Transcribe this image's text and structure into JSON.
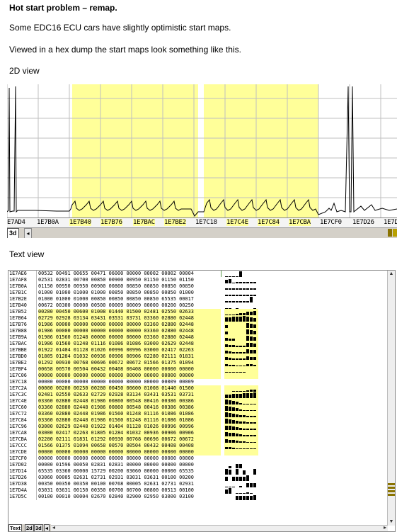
{
  "title": "Hot start problem – remap.",
  "paragraph1": "Some EDC16 ECU cars have slightly optimistic start maps.",
  "paragraph2": "Viewed in a hex dump the start maps look something like this.",
  "label_2d": "2D view",
  "label_text": "Text view",
  "colors": {
    "highlight": "#ffff99",
    "grid": "#bfbfbf",
    "trace": "#000000",
    "scroll_marker": "#b8a000"
  },
  "graph": {
    "addresses": [
      "E7AD4",
      "1E7B0A",
      "1E7B40",
      "1E7B76",
      "1E7BAC",
      "1E7BE2",
      "1E7C18",
      "1E7C4E",
      "1E7C84",
      "1E7CBA",
      "1E7CF0",
      "1E7D26",
      "1E7D"
    ],
    "highlighted_range_labels": [
      "1E7B40",
      "1E7B76",
      "1E7BAC",
      "1E7BE2",
      "1E7C4E",
      "1E7C84",
      "1E7CBA"
    ],
    "tabs": [
      "3d",
      "◂"
    ]
  },
  "text_view": {
    "rows": [
      {
        "addr": "1E7AE6",
        "vals": "00532 00491 00655 00471 06000 00000 00002 00002 00004",
        "hl": false
      },
      {
        "addr": "1E7AF8",
        "vals": "02531 02831 00700 00850 00900 00950 01150 01150 01150",
        "hl": false
      },
      {
        "addr": "1E7B0A",
        "vals": "01150 00950 00950 00900 00860 00850 00850 00850 00850",
        "hl": false
      },
      {
        "addr": "1E7B1C",
        "vals": "01000 01000 01000 01000 00850 00850 00850 00850 01000",
        "hl": false
      },
      {
        "addr": "1E7B2E",
        "vals": "01000 01000 01000 00850 00850 00850 00850 65535 00017",
        "hl": false
      },
      {
        "addr": "1E7B40",
        "vals": "00672 00300 00000 00500 00009 00009 00000 00200 00250",
        "hl": false
      },
      {
        "addr": "1E7B52",
        "vals": "00280 00450 00600 01008 01440 01500 02481 02550 02633",
        "hl": true
      },
      {
        "addr": "1E7B64",
        "vals": "02729 02928 03134 03431 03531 03731 03360 02880 02448",
        "hl": true
      },
      {
        "addr": "1E7B76",
        "vals": "01986 00000 00000 00000 00000 00000 03360 02880 02448",
        "hl": true
      },
      {
        "addr": "1E7B88",
        "vals": "01986 00000 00000 00000 00000 00000 03360 02880 02448",
        "hl": true
      },
      {
        "addr": "1E7B9A",
        "vals": "01986 01560 01248 00000 00000 00000 03360 02880 02448",
        "hl": true
      },
      {
        "addr": "1E7BAC",
        "vals": "01986 01560 01248 01116 01086 01086 03000 02629 02448",
        "hl": true
      },
      {
        "addr": "1E7BBE",
        "vals": "01922 01404 01128 01026 00996 00996 03000 02417 02263",
        "hl": true
      },
      {
        "addr": "1E7BD0",
        "vals": "01805 01284 01032 00936 00906 00906 02280 02111 01831",
        "hl": true
      },
      {
        "addr": "1E7BE2",
        "vals": "01292 00930 00768 00696 00672 00672 01566 01375 01094",
        "hl": true
      },
      {
        "addr": "1E7BF4",
        "vals": "00658 00570 00504 00432 00408 00408 00000 00000 00000",
        "hl": true
      },
      {
        "addr": "1E7C06",
        "vals": "00000 00000 00000 00000 00000 00000 00000 00000 00000",
        "hl": true
      },
      {
        "addr": "1E7C18",
        "vals": "00000 00000 00000 00000 00000 00000 00000 00009 00009",
        "hl": false
      },
      {
        "addr": "1E7C2A",
        "vals": "00000 00200 00250 00280 00450 00600 01008 01440 01500",
        "hl": true
      },
      {
        "addr": "1E7C3C",
        "vals": "02481 02550 02633 02729 02928 03134 03431 03531 03731",
        "hl": true
      },
      {
        "addr": "1E7C4E",
        "vals": "03360 02880 02448 01986 00860 00548 00416 00386 00386",
        "hl": true
      },
      {
        "addr": "1E7C60",
        "vals": "03360 02880 02448 01986 00860 00548 00416 00386 00386",
        "hl": true
      },
      {
        "addr": "1E7C72",
        "vals": "03360 02880 02448 01986 01560 01248 01116 01086 01086",
        "hl": true
      },
      {
        "addr": "1E7C84",
        "vals": "03360 02880 02448 01986 01560 01248 01116 01086 01086",
        "hl": true
      },
      {
        "addr": "1E7C96",
        "vals": "03000 02629 02448 01922 01404 01128 01026 00996 00996",
        "hl": true
      },
      {
        "addr": "1E7CA8",
        "vals": "03000 02417 02263 01805 01284 01032 00936 00906 00906",
        "hl": true
      },
      {
        "addr": "1E7CBA",
        "vals": "02280 02111 01831 01292 00930 00768 00696 00672 00672",
        "hl": true
      },
      {
        "addr": "1E7CCC",
        "vals": "01566 01375 01094 00658 00570 00504 00432 00408 00408",
        "hl": true
      },
      {
        "addr": "1E7CDE",
        "vals": "00000 00000 00000 00000 00000 00000 00000 00000 00000",
        "hl": true
      },
      {
        "addr": "1E7CF0",
        "vals": "00000 00000 00000 00000 00000 00000 00000 00000 00000",
        "hl": false
      },
      {
        "addr": "1E7D02",
        "vals": "00000 01596 00050 02831 02831 00000 00000 00000 00000",
        "hl": false
      },
      {
        "addr": "1E7D14",
        "vals": "65535 03360 00000 15729 00200 03060 00000 00000 65535",
        "hl": false
      },
      {
        "addr": "1E7D26",
        "vals": "03060 00005 02631 02731 02931 03031 03631 00100 00200",
        "hl": false
      },
      {
        "addr": "1E7D38",
        "vals": "00350 00350 00350 00100 00768 00005 02631 02731 02931",
        "hl": false
      },
      {
        "addr": "1E7D4A",
        "vals": "03031 03631 00150 00350 00700 00700 00800 00513 00100",
        "hl": false
      },
      {
        "addr": "1E7D5C",
        "vals": "00100 00010 00004 02670 02840 02900 02950 03000 03100",
        "hl": false
      }
    ],
    "tabs": [
      "Text",
      "2d",
      "3d",
      "◂"
    ]
  }
}
